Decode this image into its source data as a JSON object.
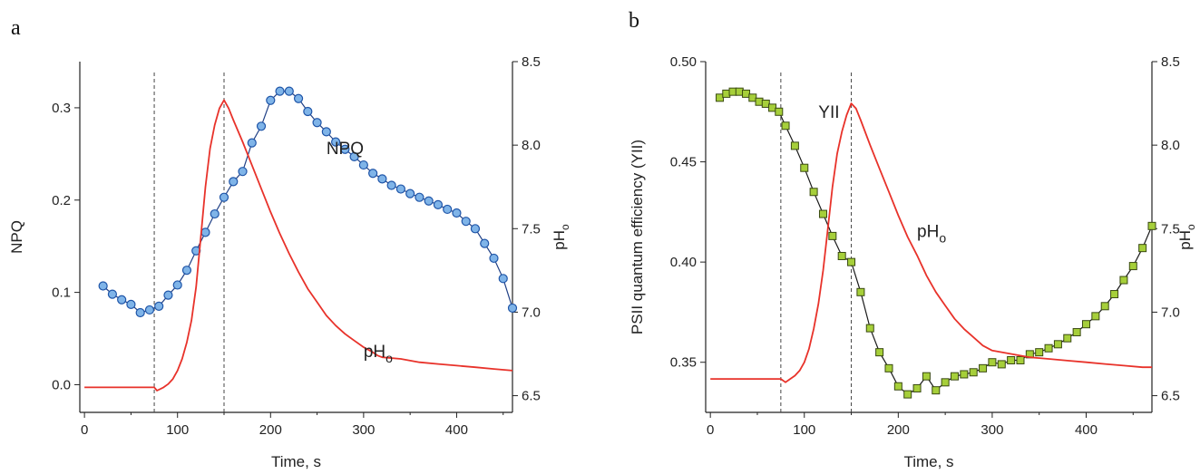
{
  "chart_data": [
    {
      "panel_label": "a",
      "type": "line",
      "xlabel": "Time, s",
      "ylabel": "NPQ",
      "y2label_base": "pH",
      "y2label_sub": "o",
      "xlim": [
        -5,
        460
      ],
      "ylim": [
        -0.03,
        0.35
      ],
      "y2lim": [
        6.4,
        8.5
      ],
      "xticks": [
        0,
        100,
        200,
        300,
        400
      ],
      "yticks": [
        0.0,
        0.1,
        0.2,
        0.3
      ],
      "yticklabels": [
        "0.0",
        "0.1",
        "0.2",
        "0.3"
      ],
      "y2ticks": [
        6.5,
        7.0,
        7.5,
        8.0,
        8.5
      ],
      "y2ticklabels": [
        "6.5",
        "7.0",
        "7.5",
        "8.0",
        "8.5"
      ],
      "vlines": [
        75,
        150
      ],
      "annotations": [
        {
          "text": "NPQ",
          "x": 260,
          "y": 0.25
        },
        {
          "text_base": "pH",
          "text_sub": "o",
          "x": 300,
          "y2": 6.73
        }
      ],
      "series": [
        {
          "label": "NPQ",
          "axis": "left",
          "style": "markers",
          "x": [
            20,
            30,
            40,
            50,
            60,
            70,
            80,
            90,
            100,
            110,
            120,
            130,
            140,
            150,
            160,
            170,
            180,
            190,
            200,
            210,
            220,
            230,
            240,
            250,
            260,
            270,
            280,
            290,
            300,
            310,
            320,
            330,
            340,
            350,
            360,
            370,
            380,
            390,
            400,
            410,
            420,
            430,
            440,
            450,
            460
          ],
          "y": [
            0.107,
            0.098,
            0.092,
            0.087,
            0.078,
            0.081,
            0.085,
            0.097,
            0.108,
            0.124,
            0.145,
            0.165,
            0.185,
            0.203,
            0.22,
            0.231,
            0.262,
            0.28,
            0.308,
            0.318,
            0.318,
            0.31,
            0.296,
            0.284,
            0.274,
            0.263,
            0.255,
            0.247,
            0.238,
            0.229,
            0.223,
            0.216,
            0.212,
            0.207,
            0.203,
            0.199,
            0.195,
            0.19,
            0.186,
            0.177,
            0.169,
            0.153,
            0.137,
            0.115,
            0.083
          ]
        },
        {
          "label": "pH_o",
          "axis": "right",
          "style": "line",
          "x": [
            0,
            20,
            40,
            60,
            75,
            78,
            85,
            90,
            95,
            100,
            105,
            110,
            115,
            120,
            125,
            130,
            135,
            140,
            145,
            150,
            155,
            160,
            170,
            180,
            190,
            200,
            210,
            220,
            230,
            240,
            250,
            260,
            270,
            280,
            290,
            300,
            310,
            315,
            320,
            340,
            360,
            380,
            400,
            420,
            440,
            460
          ],
          "y": [
            6.55,
            6.55,
            6.55,
            6.55,
            6.55,
            6.53,
            6.55,
            6.57,
            6.6,
            6.65,
            6.72,
            6.82,
            6.95,
            7.15,
            7.45,
            7.75,
            7.98,
            8.12,
            8.22,
            8.27,
            8.22,
            8.15,
            8.02,
            7.88,
            7.74,
            7.6,
            7.47,
            7.35,
            7.24,
            7.14,
            7.06,
            6.98,
            6.92,
            6.87,
            6.83,
            6.79,
            6.76,
            6.74,
            6.73,
            6.72,
            6.7,
            6.69,
            6.68,
            6.67,
            6.66,
            6.65
          ]
        }
      ]
    },
    {
      "panel_label": "b",
      "type": "line",
      "xlabel": "Time, s",
      "ylabel": "PSII quantum efficiency (YII)",
      "y2label_base": "pH",
      "y2label_sub": "o",
      "xlim": [
        -5,
        470
      ],
      "ylim": [
        0.325,
        0.5
      ],
      "y2lim": [
        6.4,
        8.5
      ],
      "xticks": [
        0,
        100,
        200,
        300,
        400
      ],
      "yticks": [
        0.35,
        0.4,
        0.45,
        0.5
      ],
      "yticklabels": [
        "0.35",
        "0.40",
        "0.45",
        "0.50"
      ],
      "y2ticks": [
        6.5,
        7.0,
        7.5,
        8.0,
        8.5
      ],
      "y2ticklabels": [
        "6.5",
        "7.0",
        "7.5",
        "8.0",
        "8.5"
      ],
      "vlines": [
        75,
        150
      ],
      "annotations": [
        {
          "text": "YII",
          "x": 115,
          "y": 0.472
        },
        {
          "text_base": "pH",
          "text_sub": "o",
          "x": 220,
          "y2": 7.45
        }
      ],
      "series": [
        {
          "label": "YII",
          "axis": "left",
          "style": "markers",
          "x": [
            10,
            17,
            24,
            31,
            38,
            45,
            52,
            59,
            66,
            73,
            80,
            90,
            100,
            110,
            120,
            130,
            140,
            150,
            160,
            170,
            180,
            190,
            200,
            210,
            220,
            230,
            240,
            250,
            260,
            270,
            280,
            290,
            300,
            310,
            320,
            330,
            340,
            350,
            360,
            370,
            380,
            390,
            400,
            410,
            420,
            430,
            440,
            450,
            460,
            470
          ],
          "y": [
            0.482,
            0.484,
            0.485,
            0.485,
            0.484,
            0.482,
            0.48,
            0.479,
            0.477,
            0.475,
            0.468,
            0.458,
            0.447,
            0.435,
            0.424,
            0.413,
            0.403,
            0.4,
            0.385,
            0.367,
            0.355,
            0.347,
            0.338,
            0.334,
            0.337,
            0.343,
            0.336,
            0.34,
            0.343,
            0.344,
            0.345,
            0.347,
            0.35,
            0.349,
            0.351,
            0.351,
            0.354,
            0.355,
            0.357,
            0.359,
            0.362,
            0.365,
            0.369,
            0.373,
            0.378,
            0.384,
            0.391,
            0.398,
            0.407,
            0.418
          ]
        },
        {
          "label": "pH_o",
          "axis": "right",
          "style": "line",
          "x": [
            0,
            20,
            40,
            60,
            75,
            80,
            85,
            90,
            95,
            100,
            105,
            110,
            115,
            120,
            125,
            130,
            135,
            140,
            145,
            150,
            155,
            160,
            170,
            180,
            190,
            200,
            210,
            220,
            230,
            240,
            250,
            260,
            270,
            280,
            290,
            300,
            320,
            340,
            360,
            380,
            400,
            420,
            440,
            460,
            470
          ],
          "y": [
            6.6,
            6.6,
            6.6,
            6.6,
            6.6,
            6.58,
            6.6,
            6.62,
            6.65,
            6.7,
            6.78,
            6.9,
            7.05,
            7.25,
            7.5,
            7.75,
            7.95,
            8.08,
            8.18,
            8.25,
            8.22,
            8.15,
            8.0,
            7.86,
            7.72,
            7.58,
            7.45,
            7.34,
            7.22,
            7.12,
            7.04,
            6.96,
            6.9,
            6.85,
            6.8,
            6.77,
            6.75,
            6.73,
            6.72,
            6.71,
            6.7,
            6.69,
            6.68,
            6.67,
            6.67
          ]
        }
      ]
    }
  ]
}
